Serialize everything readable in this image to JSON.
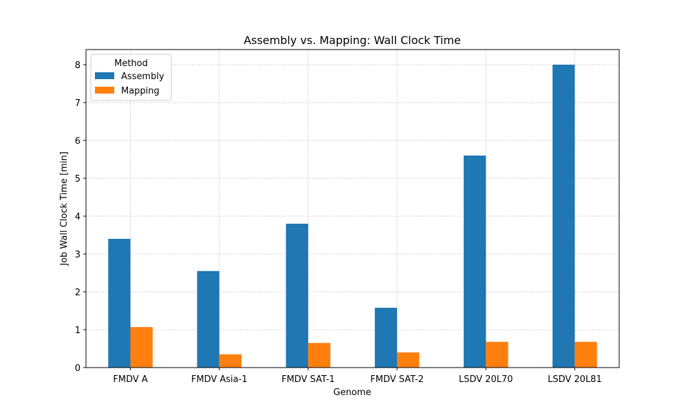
{
  "chart_data": {
    "type": "bar",
    "title": "Assembly vs. Mapping: Wall Clock Time",
    "xlabel": "Genome",
    "ylabel": "Job Wall Clock Time [min]",
    "categories": [
      "FMDV A",
      "FMDV Asia-1",
      "FMDV SAT-1",
      "FMDV SAT-2",
      "LSDV 20L70",
      "LSDV 20L81"
    ],
    "series": [
      {
        "name": "Assembly",
        "color": "#1f77b4",
        "values": [
          3.4,
          2.55,
          3.8,
          1.58,
          5.6,
          8.0
        ]
      },
      {
        "name": "Mapping",
        "color": "#ff7f0e",
        "values": [
          1.07,
          0.35,
          0.65,
          0.4,
          0.68,
          0.68
        ]
      }
    ],
    "ylim": [
      0,
      8.4
    ],
    "yticks": [
      "0",
      "1",
      "2",
      "3",
      "4",
      "5",
      "6",
      "7",
      "8"
    ],
    "grid": true,
    "legend": {
      "title": "Method",
      "position": "top-left"
    }
  }
}
